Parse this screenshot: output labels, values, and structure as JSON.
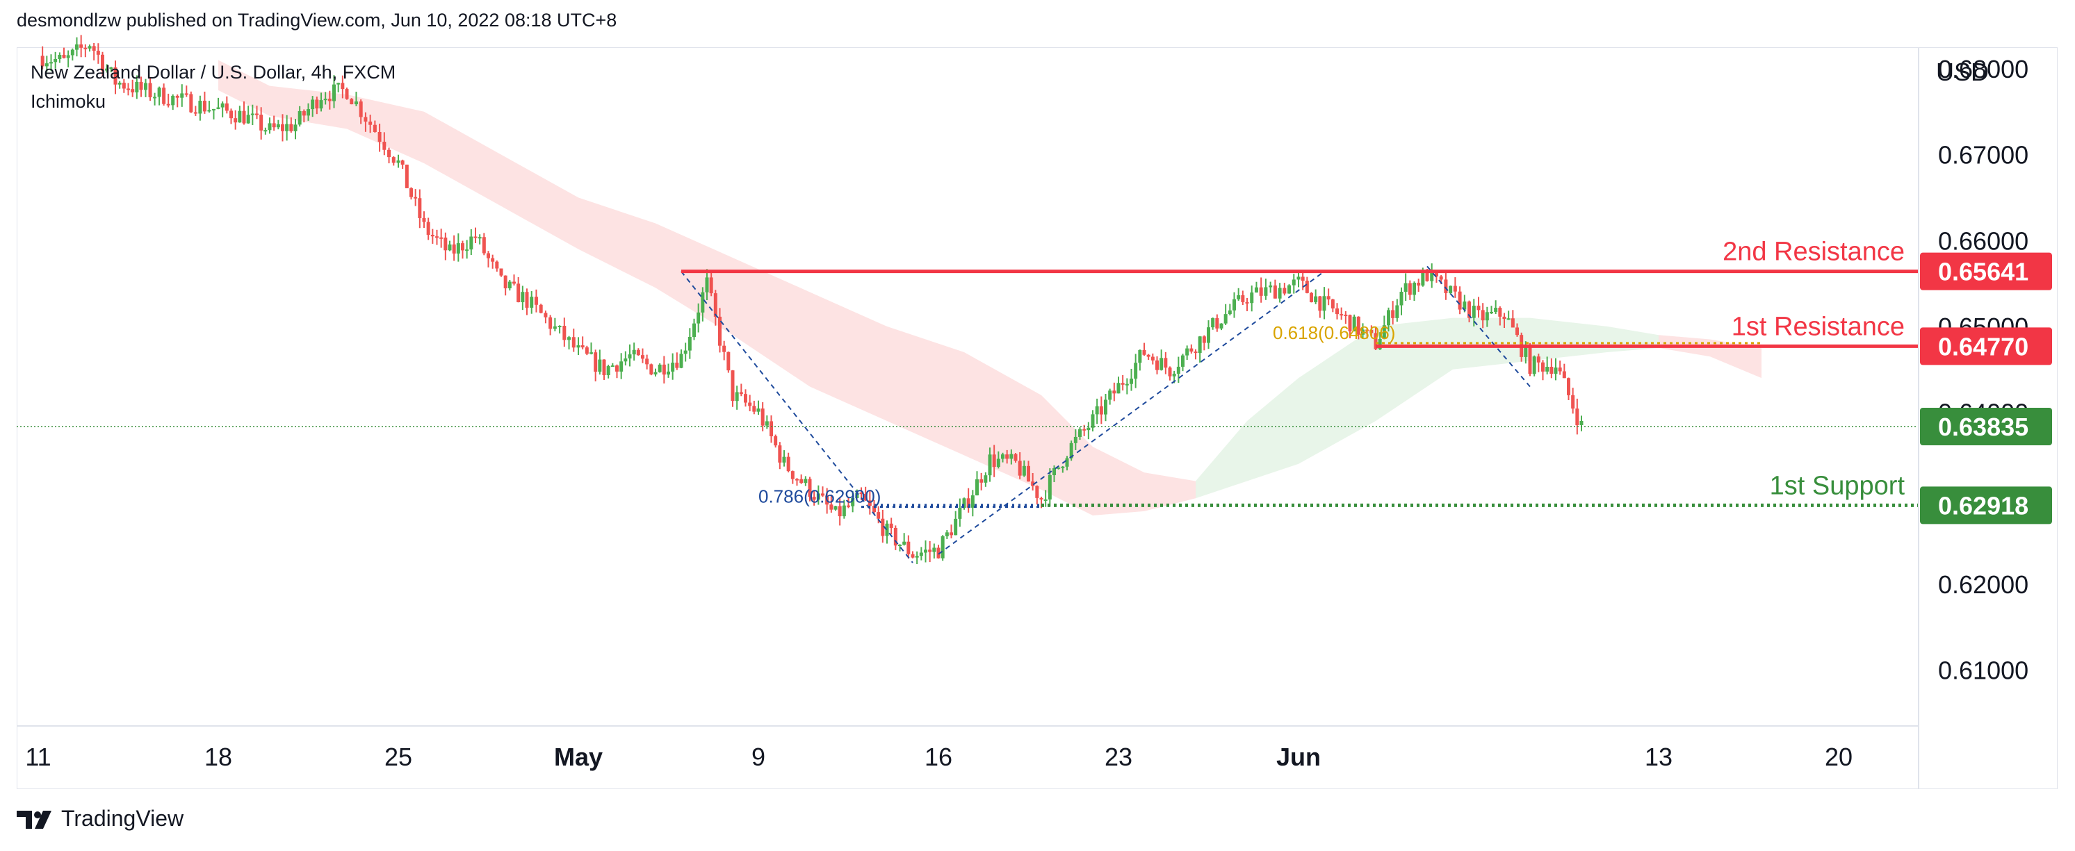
{
  "header": {
    "text": "desmondlzw published on TradingView.com, Jun 10, 2022 08:18 UTC+8"
  },
  "footer": {
    "brand": "TradingView"
  },
  "chart_data": {
    "type": "candlestick",
    "instrument": "New Zealand Dollar / U.S. Dollar, 4h, FXCM",
    "indicator": "Ichimoku",
    "currency": "USD",
    "ylim": [
      0.6035,
      0.6825
    ],
    "y_ticks": [
      {
        "value": 0.68,
        "label": "0.68000"
      },
      {
        "value": 0.67,
        "label": "0.67000"
      },
      {
        "value": 0.66,
        "label": "0.66000"
      },
      {
        "value": 0.65,
        "label": "0.65000"
      },
      {
        "value": 0.64,
        "label": "0.64000"
      },
      {
        "value": 0.62,
        "label": "0.62000"
      },
      {
        "value": 0.61,
        "label": "0.61000"
      }
    ],
    "x_ticks": [
      {
        "date": "2022-04-11",
        "label": "11",
        "bold": false
      },
      {
        "date": "2022-04-18",
        "label": "18",
        "bold": false
      },
      {
        "date": "2022-04-25",
        "label": "25",
        "bold": false
      },
      {
        "date": "2022-05-02",
        "label": "May",
        "bold": true
      },
      {
        "date": "2022-05-09",
        "label": "9",
        "bold": false
      },
      {
        "date": "2022-05-16",
        "label": "16",
        "bold": false
      },
      {
        "date": "2022-05-23",
        "label": "23",
        "bold": false
      },
      {
        "date": "2022-05-30",
        "label": "Jun",
        "bold": true
      },
      {
        "date": "2022-06-13",
        "label": "13",
        "bold": false
      },
      {
        "date": "2022-06-20",
        "label": "20",
        "bold": false
      }
    ],
    "closes": [
      [
        "2022-04-11",
        0.6815
      ],
      [
        "2022-04-12",
        0.6808
      ],
      [
        "2022-04-13",
        0.683
      ],
      [
        "2022-04-14",
        0.6785
      ],
      [
        "2022-04-15",
        0.6775
      ],
      [
        "2022-04-18",
        0.6752
      ],
      [
        "2022-04-19",
        0.6745
      ],
      [
        "2022-04-20",
        0.6728
      ],
      [
        "2022-04-21",
        0.6735
      ],
      [
        "2022-04-22",
        0.677
      ],
      [
        "2022-04-23",
        0.6775
      ],
      [
        "2022-04-25",
        0.669
      ],
      [
        "2022-04-26",
        0.6615
      ],
      [
        "2022-04-27",
        0.6585
      ],
      [
        "2022-04-28",
        0.6605
      ],
      [
        "2022-04-29",
        0.655
      ],
      [
        "2022-04-30",
        0.653
      ],
      [
        "2022-05-02",
        0.647
      ],
      [
        "2022-05-03",
        0.645
      ],
      [
        "2022-05-04",
        0.6465
      ],
      [
        "2022-05-05",
        0.645
      ],
      [
        "2022-05-06",
        0.6465
      ],
      [
        "2022-05-07",
        0.655
      ],
      [
        "2022-05-08",
        0.642
      ],
      [
        "2022-05-09",
        0.64
      ],
      [
        "2022-05-10",
        0.634
      ],
      [
        "2022-05-11",
        0.631
      ],
      [
        "2022-05-12",
        0.628
      ],
      [
        "2022-05-13",
        0.63
      ],
      [
        "2022-05-14",
        0.626
      ],
      [
        "2022-05-15",
        0.6235
      ],
      [
        "2022-05-16",
        0.624
      ],
      [
        "2022-05-17",
        0.629
      ],
      [
        "2022-05-18",
        0.6345
      ],
      [
        "2022-05-19",
        0.634
      ],
      [
        "2022-05-20",
        0.63
      ],
      [
        "2022-05-21",
        0.6355
      ],
      [
        "2022-05-22",
        0.639
      ],
      [
        "2022-05-23",
        0.643
      ],
      [
        "2022-05-24",
        0.647
      ],
      [
        "2022-05-25",
        0.645
      ],
      [
        "2022-05-26",
        0.648
      ],
      [
        "2022-05-27",
        0.651
      ],
      [
        "2022-05-28",
        0.6535
      ],
      [
        "2022-05-30",
        0.655
      ],
      [
        "2022-05-31",
        0.6525
      ],
      [
        "2022-06-01",
        0.6505
      ],
      [
        "2022-06-02",
        0.648
      ],
      [
        "2022-06-03",
        0.654
      ],
      [
        "2022-06-04",
        0.656
      ],
      [
        "2022-06-06",
        0.651
      ],
      [
        "2022-06-07",
        0.6515
      ],
      [
        "2022-06-08",
        0.6455
      ],
      [
        "2022-06-09",
        0.6455
      ],
      [
        "2022-06-10",
        0.6384
      ]
    ],
    "ichimoku_cloud": {
      "bearish": [
        [
          "2022-04-18",
          0.681,
          0.6775
        ],
        [
          "2022-04-20",
          0.678,
          0.6745
        ],
        [
          "2022-04-23",
          0.677,
          0.673
        ],
        [
          "2022-04-26",
          0.675,
          0.669
        ],
        [
          "2022-04-29",
          0.67,
          0.664
        ],
        [
          "2022-05-02",
          0.665,
          0.659
        ],
        [
          "2022-05-05",
          0.662,
          0.6545
        ],
        [
          "2022-05-08",
          0.658,
          0.649
        ],
        [
          "2022-05-11",
          0.654,
          0.643
        ],
        [
          "2022-05-14",
          0.65,
          0.639
        ],
        [
          "2022-05-17",
          0.647,
          0.635
        ],
        [
          "2022-05-20",
          0.642,
          0.631
        ],
        [
          "2022-05-22",
          0.636,
          0.628
        ],
        [
          "2022-05-24",
          0.633,
          0.6285
        ],
        [
          "2022-05-26",
          0.632,
          0.63
        ]
      ],
      "bullish": [
        [
          "2022-05-26",
          0.632,
          0.63
        ],
        [
          "2022-05-28",
          0.639,
          0.632
        ],
        [
          "2022-05-30",
          0.644,
          0.634
        ],
        [
          "2022-06-02",
          0.65,
          0.639
        ],
        [
          "2022-06-05",
          0.651,
          0.645
        ],
        [
          "2022-06-08",
          0.651,
          0.646
        ],
        [
          "2022-06-11",
          0.65,
          0.647
        ],
        [
          "2022-06-13",
          0.649,
          0.6475
        ]
      ],
      "bearish_tail": [
        [
          "2022-06-13",
          0.649,
          0.6475
        ],
        [
          "2022-06-15",
          0.6485,
          0.6465
        ],
        [
          "2022-06-17",
          0.6475,
          0.644
        ]
      ]
    },
    "fib_retracements": [
      {
        "label": "0.786(0.62900)",
        "value": 0.629,
        "from": "2022-05-13",
        "to": "2022-05-20",
        "color": "#1e4a9c"
      },
      {
        "label": "0.618(0.64806)",
        "value": 0.64806,
        "from": "2022-06-02",
        "to": "2022-06-17",
        "color": "#d9a400"
      }
    ],
    "trend_lines": [
      {
        "from": [
          "2022-05-06",
          0.6564
        ],
        "to": [
          "2022-05-15",
          0.6225
        ]
      },
      {
        "from": [
          "2022-05-16",
          0.6235
        ],
        "to": [
          "2022-05-31",
          0.6564
        ]
      },
      {
        "from": [
          "2022-06-04",
          0.657
        ],
        "to": [
          "2022-06-08",
          0.643
        ]
      }
    ],
    "levels": [
      {
        "name": "2nd Resistance",
        "value": 0.65641,
        "label": "0.65641",
        "color": "#f23645",
        "from": "2022-05-06",
        "style": "solid"
      },
      {
        "name": "1st Resistance",
        "value": 0.6477,
        "label": "0.64770",
        "color": "#f23645",
        "from": "2022-06-02",
        "style": "solid"
      },
      {
        "name": "1st Support",
        "value": 0.62918,
        "label": "0.62918",
        "color": "#388e3c",
        "from": "2022-05-20",
        "style": "dotted"
      }
    ],
    "current_price": {
      "value": 0.63835,
      "label": "0.63835",
      "color": "#388e3c"
    },
    "colors": {
      "up": "#26a69a",
      "up_display": "#4caf50",
      "down": "#ef5350",
      "cloud_bear": "#fde3e3",
      "cloud_bull": "#e8f5e9",
      "axis_text": "#131722"
    }
  }
}
